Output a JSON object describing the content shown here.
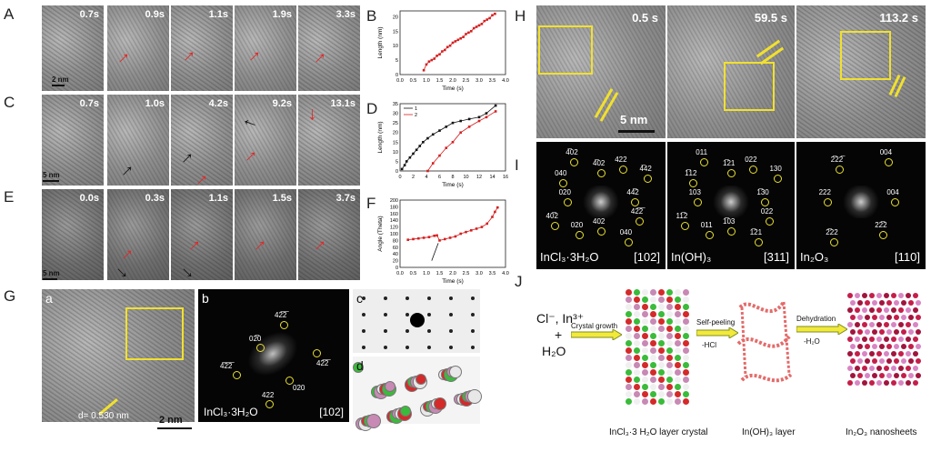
{
  "panel_letters": {
    "A": "A",
    "B": "B",
    "C": "C",
    "D": "D",
    "E": "E",
    "F": "F",
    "G": "G",
    "H": "H",
    "I": "I",
    "J": "J"
  },
  "row_A_times": [
    "0.7s",
    "0.9s",
    "1.1s",
    "1.9s",
    "3.3s"
  ],
  "row_C_times": [
    "0.7s",
    "1.0s",
    "4.2s",
    "9.2s",
    "13.1s"
  ],
  "row_E_times": [
    "0.0s",
    "0.3s",
    "1.1s",
    "1.5s",
    "3.7s"
  ],
  "scale_A": "2 nm",
  "scale_C": "5 nm",
  "scale_E": "5 nm",
  "G": {
    "sub_a": "a",
    "sub_b": "b",
    "sub_c": "c",
    "sub_d": "d",
    "d_spacing": "d= 0.530 nm",
    "scale": "2 nm",
    "compound": "InCl₃·3H₂O",
    "zone": "[102]",
    "fft_spots": [
      "42̅2̅",
      "02̅0",
      "42̅2̅",
      "4̅2̅2̅",
      "020",
      "422"
    ]
  },
  "H": {
    "times": [
      "0.5 s",
      "59.5 s",
      "113.2 s"
    ],
    "scale": "5 nm"
  },
  "I": {
    "compounds": [
      "InCl₃·3H₂O",
      "In(OH)₃",
      "In₂O₃"
    ],
    "zones": [
      "[102]",
      "[311]",
      "[110]"
    ],
    "spots1": [
      "44̅2",
      "42̅2̅",
      "040",
      "402",
      "020",
      "40̅2",
      "020",
      "040",
      "4̅02",
      "4̅02",
      "422",
      "4̅42"
    ],
    "spots2": [
      "1̅30",
      "022",
      "1̅21",
      "1̅03",
      "011",
      "11̅2",
      "103",
      "1̅12",
      "011",
      "1̅21",
      "022",
      "130"
    ],
    "spots3": [
      "004",
      "22̅2",
      "2̅22",
      "222",
      "2̅22̅",
      "004"
    ]
  },
  "J": {
    "reactants_line1": "Cl⁻, In³⁺",
    "plus": "+",
    "reactants_line2": "H₂O",
    "step1": "Crystal growth",
    "step2_a": "Self-peeling",
    "step2_b": "-HCl",
    "step3_a": "Dehydration",
    "step3_b": "-H₂O",
    "label1": "InCl₃·3 H₂O layer crystal",
    "label2": "In(OH)₃ layer",
    "label3": "In₂O₃ nanosheets"
  },
  "chart_data": [
    {
      "type": "scatter",
      "panel": "B",
      "xlabel": "Time (s)",
      "ylabel": "Length (nm)",
      "xlim": [
        0.0,
        4.0
      ],
      "ylim": [
        0,
        22
      ],
      "xticks": [
        "0.0",
        "0.5",
        "1.0",
        "1.5",
        "2.0",
        "2.5",
        "3.0",
        "3.5",
        "4.0"
      ],
      "yticks": [
        "0",
        "5",
        "10",
        "15",
        "20"
      ],
      "color": "#d42020",
      "x": [
        0.9,
        1.0,
        1.1,
        1.2,
        1.3,
        1.4,
        1.5,
        1.6,
        1.7,
        1.8,
        1.9,
        2.0,
        2.1,
        2.2,
        2.3,
        2.4,
        2.5,
        2.6,
        2.7,
        2.8,
        2.9,
        3.0,
        3.1,
        3.2,
        3.3,
        3.4,
        3.5,
        3.6
      ],
      "y": [
        1.5,
        3.5,
        4.5,
        5,
        5.5,
        6.5,
        7,
        8,
        8.5,
        9.5,
        10,
        11,
        11.5,
        12,
        12.5,
        13,
        14,
        14.5,
        15,
        16,
        16.5,
        17,
        17.5,
        18.5,
        19,
        19.5,
        20.5,
        21
      ]
    },
    {
      "type": "line",
      "panel": "D",
      "xlabel": "Time (s)",
      "ylabel": "Length (nm)",
      "xlim": [
        0,
        16
      ],
      "ylim": [
        0,
        35
      ],
      "xticks": [
        "0",
        "2",
        "4",
        "6",
        "8",
        "10",
        "12",
        "14",
        "16"
      ],
      "yticks": [
        "0",
        "5",
        "10",
        "15",
        "20",
        "25",
        "30",
        "35"
      ],
      "legend": "top-left",
      "series": [
        {
          "name": "1",
          "color": "#111111",
          "x": [
            0.3,
            0.7,
            1.0,
            1.5,
            2.0,
            2.5,
            3.0,
            3.5,
            4.2,
            5.0,
            6.0,
            7.0,
            8.0,
            9.2,
            10.5,
            12.0,
            13.1,
            14.5
          ],
          "y": [
            1,
            3,
            5,
            7,
            9,
            11,
            13,
            15,
            17,
            19,
            21,
            23,
            25,
            26,
            27,
            28,
            30,
            34
          ]
        },
        {
          "name": "2",
          "color": "#d42020",
          "x": [
            4.2,
            5.0,
            6.0,
            7.0,
            8.0,
            9.2,
            10.5,
            12.0,
            13.1,
            14.5
          ],
          "y": [
            0,
            4,
            8,
            12,
            15,
            20,
            23,
            26,
            28,
            31
          ]
        }
      ]
    },
    {
      "type": "line",
      "panel": "F",
      "xlabel": "Time (s)",
      "ylabel": "Angle (Theta)",
      "xlim": [
        0.0,
        4.0
      ],
      "ylim": [
        0,
        200
      ],
      "xticks": [
        "0.0",
        "0.5",
        "1.0",
        "1.5",
        "2.0",
        "2.5",
        "3.0",
        "3.5",
        "4.0"
      ],
      "yticks": [
        "0",
        "20",
        "40",
        "60",
        "80",
        "100",
        "120",
        "140",
        "160",
        "180",
        "200"
      ],
      "color": "#d42020",
      "x": [
        0.3,
        0.5,
        0.7,
        0.9,
        1.1,
        1.3,
        1.4,
        1.5,
        1.7,
        1.9,
        2.1,
        2.3,
        2.5,
        2.7,
        2.9,
        3.1,
        3.3,
        3.5,
        3.6,
        3.7
      ],
      "y": [
        82,
        84,
        86,
        88,
        90,
        94,
        95,
        80,
        84,
        88,
        92,
        100,
        105,
        110,
        115,
        120,
        130,
        150,
        165,
        178
      ]
    }
  ]
}
